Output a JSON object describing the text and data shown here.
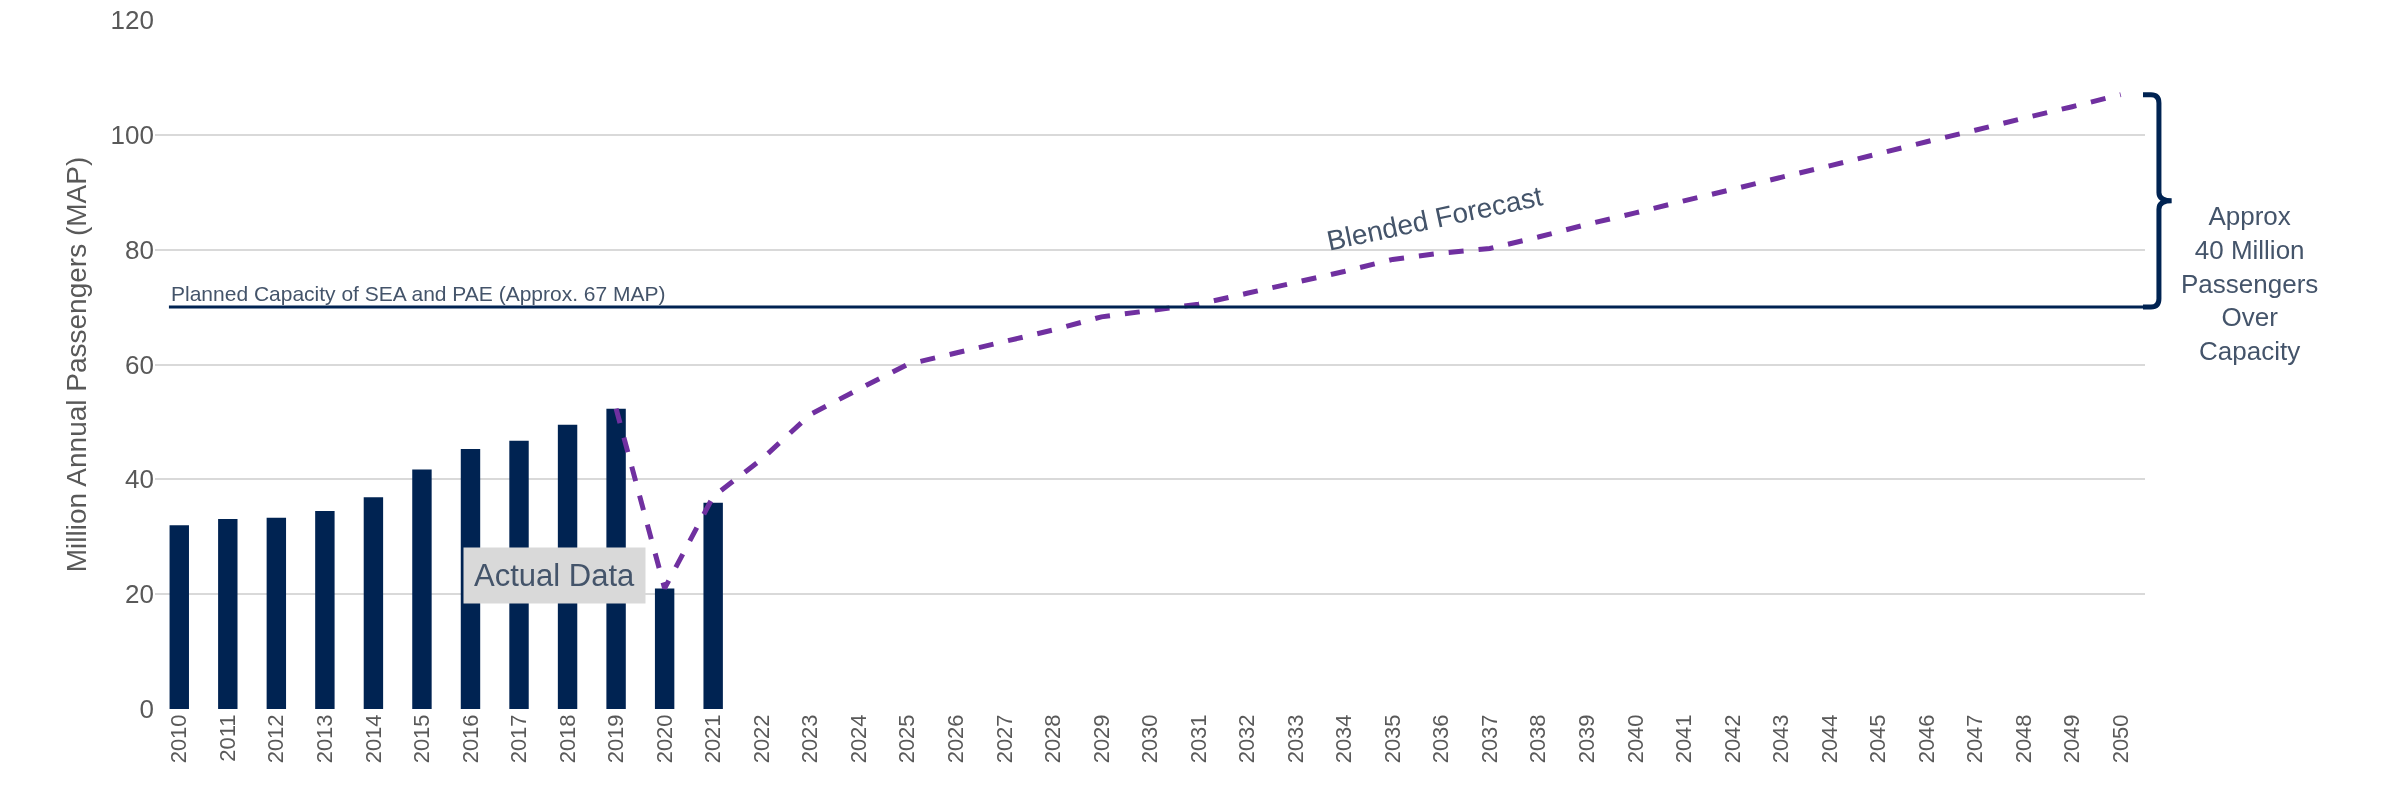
{
  "chart_data": {
    "type": "bar",
    "ylabel": "Million Annual Passengers (MAP)",
    "ylim": [
      0,
      120
    ],
    "yticks": [
      0,
      20,
      40,
      60,
      80,
      100,
      120
    ],
    "grid": "y",
    "categories": [
      "2010",
      "2011",
      "2012",
      "2013",
      "2014",
      "2015",
      "2016",
      "2017",
      "2018",
      "2019",
      "2020",
      "2021",
      "2022",
      "2023",
      "2024",
      "2025",
      "2026",
      "2027",
      "2028",
      "2029",
      "2030",
      "2031",
      "2032",
      "2033",
      "2034",
      "2035",
      "2036",
      "2037",
      "2038",
      "2039",
      "2040",
      "2041",
      "2042",
      "2043",
      "2044",
      "2045",
      "2046",
      "2047",
      "2048",
      "2049",
      "2050"
    ],
    "series": [
      {
        "color": "#002352",
        "values": [
          32.0,
          33.1,
          33.3,
          34.5,
          36.9,
          41.7,
          45.3,
          46.7,
          49.5,
          52.3,
          21.0,
          35.9,
          null,
          null,
          null,
          null,
          null,
          null,
          null,
          null,
          null,
          null,
          null,
          null,
          null,
          null,
          null,
          null,
          null,
          null,
          null,
          null,
          null,
          null,
          null,
          null,
          null,
          null,
          null,
          null,
          null
        ]
      },
      {
        "type": "line",
        "color": "#7030a0",
        "line_style": "dashed",
        "values": [
          null,
          null,
          null,
          null,
          null,
          null,
          null,
          null,
          null,
          52.3,
          21.0,
          37.0,
          43.5,
          51.3,
          55.7,
          60.0,
          62.0,
          64.0,
          66.0,
          68.3,
          69.4,
          70.5,
          72.4,
          74.3,
          76.2,
          78.3,
          79.4,
          80.2,
          82.2,
          84.4,
          86.4,
          88.5,
          90.5,
          92.6,
          94.6,
          96.7,
          98.8,
          100.8,
          102.9,
          104.9,
          107.0
        ]
      }
    ],
    "ref_lines": [
      {
        "axis": "y",
        "value": 70,
        "label": "Planned Capacity of SEA and PAE (Approx. 67 MAP)",
        "color": "#002352"
      }
    ],
    "annotations": [
      "Blended Forecast",
      "Actual Data",
      "Approx\n40 Million\nPassengers\nOver\nCapacity"
    ]
  }
}
